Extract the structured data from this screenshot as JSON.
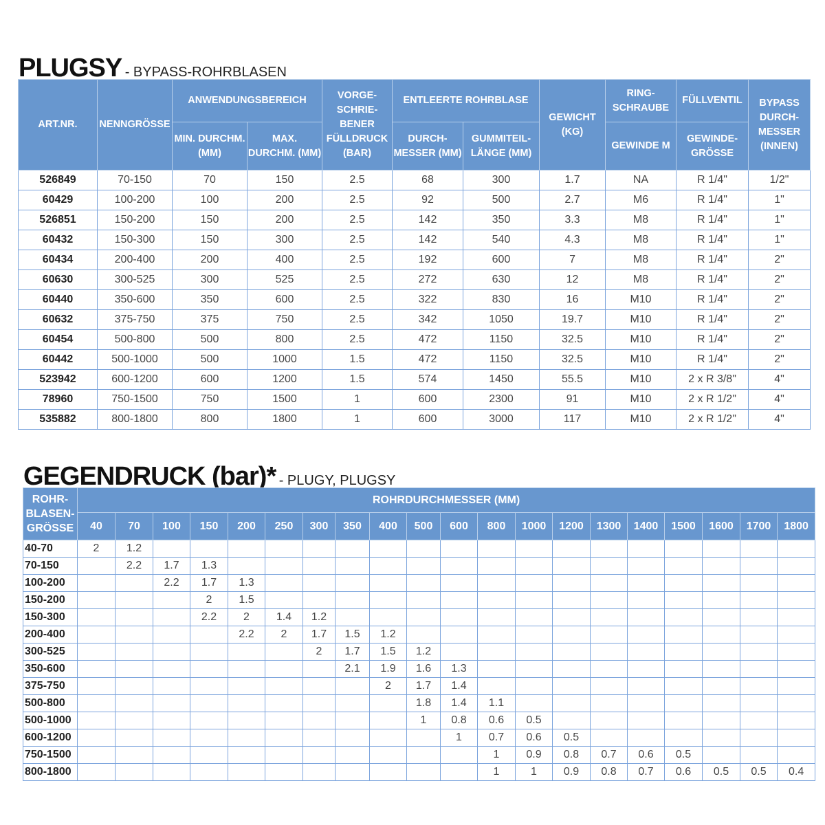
{
  "plugsy": {
    "title": "PLUGSY",
    "subtitle": "- BYPASS-ROHRBLASEN",
    "headers": {
      "art_nr": "ART.NR.",
      "nenngroesse": "NENNGRÖSSE",
      "anwendungsbereich": "ANWENDUNGSBEREICH",
      "min": "MIN. DURCHM. (MM)",
      "max": "MAX. DURCHM. (MM)",
      "fuelldruck": "VORGE- SCHRIE- BENER FÜLLDRUCK (BAR)",
      "entleerte": "ENTLEERTE ROHRBLASE",
      "durchmesser": "DURCH- MESSER (MM)",
      "laenge": "GUMMITEIL- LÄNGE (MM)",
      "gewicht": "GEWICHT (KG)",
      "ringschraube": "RING- SCHRAUBE",
      "gewinde_m": "GEWINDE M",
      "fuellventil": "FÜLLVENTIL",
      "gewindegroesse": "GEWINDE- GRÖSSE",
      "bypass": "BYPASS DURCH- MESSER (INNEN)"
    },
    "rows": [
      [
        "526849",
        "70-150",
        "70",
        "150",
        "2.5",
        "68",
        "300",
        "1.7",
        "NA",
        "R 1/4\"",
        "1/2\""
      ],
      [
        "60429",
        "100-200",
        "100",
        "200",
        "2.5",
        "92",
        "500",
        "2.7",
        "M6",
        "R 1/4\"",
        "1\""
      ],
      [
        "526851",
        "150-200",
        "150",
        "200",
        "2.5",
        "142",
        "350",
        "3.3",
        "M8",
        "R 1/4\"",
        "1\""
      ],
      [
        "60432",
        "150-300",
        "150",
        "300",
        "2.5",
        "142",
        "540",
        "4.3",
        "M8",
        "R 1/4\"",
        "1\""
      ],
      [
        "60434",
        "200-400",
        "200",
        "400",
        "2.5",
        "192",
        "600",
        "7",
        "M8",
        "R 1/4\"",
        "2\""
      ],
      [
        "60630",
        "300-525",
        "300",
        "525",
        "2.5",
        "272",
        "630",
        "12",
        "M8",
        "R 1/4\"",
        "2\""
      ],
      [
        "60440",
        "350-600",
        "350",
        "600",
        "2.5",
        "322",
        "830",
        "16",
        "M10",
        "R 1/4\"",
        "2\""
      ],
      [
        "60632",
        "375-750",
        "375",
        "750",
        "2.5",
        "342",
        "1050",
        "19.7",
        "M10",
        "R 1/4\"",
        "2\""
      ],
      [
        "60454",
        "500-800",
        "500",
        "800",
        "2.5",
        "472",
        "1150",
        "32.5",
        "M10",
        "R 1/4\"",
        "2\""
      ],
      [
        "60442",
        "500-1000",
        "500",
        "1000",
        "1.5",
        "472",
        "1150",
        "32.5",
        "M10",
        "R 1/4\"",
        "2\""
      ],
      [
        "523942",
        "600-1200",
        "600",
        "1200",
        "1.5",
        "574",
        "1450",
        "55.5",
        "M10",
        "2 x R 3/8\"",
        "4\""
      ],
      [
        "78960",
        "750-1500",
        "750",
        "1500",
        "1",
        "600",
        "2300",
        "91",
        "M10",
        "2 x R 1/2\"",
        "4\""
      ],
      [
        "535882",
        "800-1800",
        "800",
        "1800",
        "1",
        "600",
        "3000",
        "117",
        "M10",
        "2 x R 1/2\"",
        "4\""
      ]
    ]
  },
  "gegendruck": {
    "title": "GEGENDRUCK (bar)*",
    "subtitle": "- PLUGY, PLUGSY",
    "row_header": "ROHR- BLASEN- GRÖSSE",
    "group_header": "ROHRDURCHMESSER (MM)",
    "columns": [
      "40",
      "70",
      "100",
      "150",
      "200",
      "250",
      "300",
      "350",
      "400",
      "500",
      "600",
      "800",
      "1000",
      "1200",
      "1300",
      "1400",
      "1500",
      "1600",
      "1700",
      "1800"
    ],
    "rows": [
      {
        "size": "40-70",
        "values": [
          "2",
          "1.2",
          "",
          "",
          "",
          "",
          "",
          "",
          "",
          "",
          "",
          "",
          "",
          "",
          "",
          "",
          "",
          "",
          "",
          ""
        ]
      },
      {
        "size": "70-150",
        "values": [
          "",
          "2.2",
          "1.7",
          "1.3",
          "",
          "",
          "",
          "",
          "",
          "",
          "",
          "",
          "",
          "",
          "",
          "",
          "",
          "",
          "",
          ""
        ]
      },
      {
        "size": "100-200",
        "values": [
          "",
          "",
          "2.2",
          "1.7",
          "1.3",
          "",
          "",
          "",
          "",
          "",
          "",
          "",
          "",
          "",
          "",
          "",
          "",
          "",
          "",
          ""
        ]
      },
      {
        "size": "150-200",
        "values": [
          "",
          "",
          "",
          "2",
          "1.5",
          "",
          "",
          "",
          "",
          "",
          "",
          "",
          "",
          "",
          "",
          "",
          "",
          "",
          "",
          ""
        ]
      },
      {
        "size": "150-300",
        "values": [
          "",
          "",
          "",
          "2.2",
          "2",
          "1.4",
          "1.2",
          "",
          "",
          "",
          "",
          "",
          "",
          "",
          "",
          "",
          "",
          "",
          "",
          ""
        ]
      },
      {
        "size": "200-400",
        "values": [
          "",
          "",
          "",
          "",
          "2.2",
          "2",
          "1.7",
          "1.5",
          "1.2",
          "",
          "",
          "",
          "",
          "",
          "",
          "",
          "",
          "",
          "",
          ""
        ]
      },
      {
        "size": "300-525",
        "values": [
          "",
          "",
          "",
          "",
          "",
          "",
          "2",
          "1.7",
          "1.5",
          "1.2",
          "",
          "",
          "",
          "",
          "",
          "",
          "",
          "",
          "",
          ""
        ]
      },
      {
        "size": "350-600",
        "values": [
          "",
          "",
          "",
          "",
          "",
          "",
          "",
          "2.1",
          "1.9",
          "1.6",
          "1.3",
          "",
          "",
          "",
          "",
          "",
          "",
          "",
          "",
          ""
        ]
      },
      {
        "size": "375-750",
        "values": [
          "",
          "",
          "",
          "",
          "",
          "",
          "",
          "",
          "2",
          "1.7",
          "1.4",
          "",
          "",
          "",
          "",
          "",
          "",
          "",
          "",
          ""
        ]
      },
      {
        "size": "500-800",
        "values": [
          "",
          "",
          "",
          "",
          "",
          "",
          "",
          "",
          "",
          "1.8",
          "1.4",
          "1.1",
          "",
          "",
          "",
          "",
          "",
          "",
          "",
          ""
        ]
      },
      {
        "size": "500-1000",
        "values": [
          "",
          "",
          "",
          "",
          "",
          "",
          "",
          "",
          "",
          "1",
          "0.8",
          "0.6",
          "0.5",
          "",
          "",
          "",
          "",
          "",
          "",
          ""
        ]
      },
      {
        "size": "600-1200",
        "values": [
          "",
          "",
          "",
          "",
          "",
          "",
          "",
          "",
          "",
          "",
          "1",
          "0.7",
          "0.6",
          "0.5",
          "",
          "",
          "",
          "",
          "",
          ""
        ]
      },
      {
        "size": "750-1500",
        "values": [
          "",
          "",
          "",
          "",
          "",
          "",
          "",
          "",
          "",
          "",
          "",
          "1",
          "0.9",
          "0.8",
          "0.7",
          "0.6",
          "0.5",
          "",
          "",
          ""
        ]
      },
      {
        "size": "800-1800",
        "values": [
          "",
          "",
          "",
          "",
          "",
          "",
          "",
          "",
          "",
          "",
          "",
          "1",
          "1",
          "0.9",
          "0.8",
          "0.7",
          "0.6",
          "0.5",
          "0.5",
          "0.4"
        ]
      }
    ]
  },
  "colors": {
    "header_bg": "#6897cf",
    "grid": "#7aa3dc"
  }
}
